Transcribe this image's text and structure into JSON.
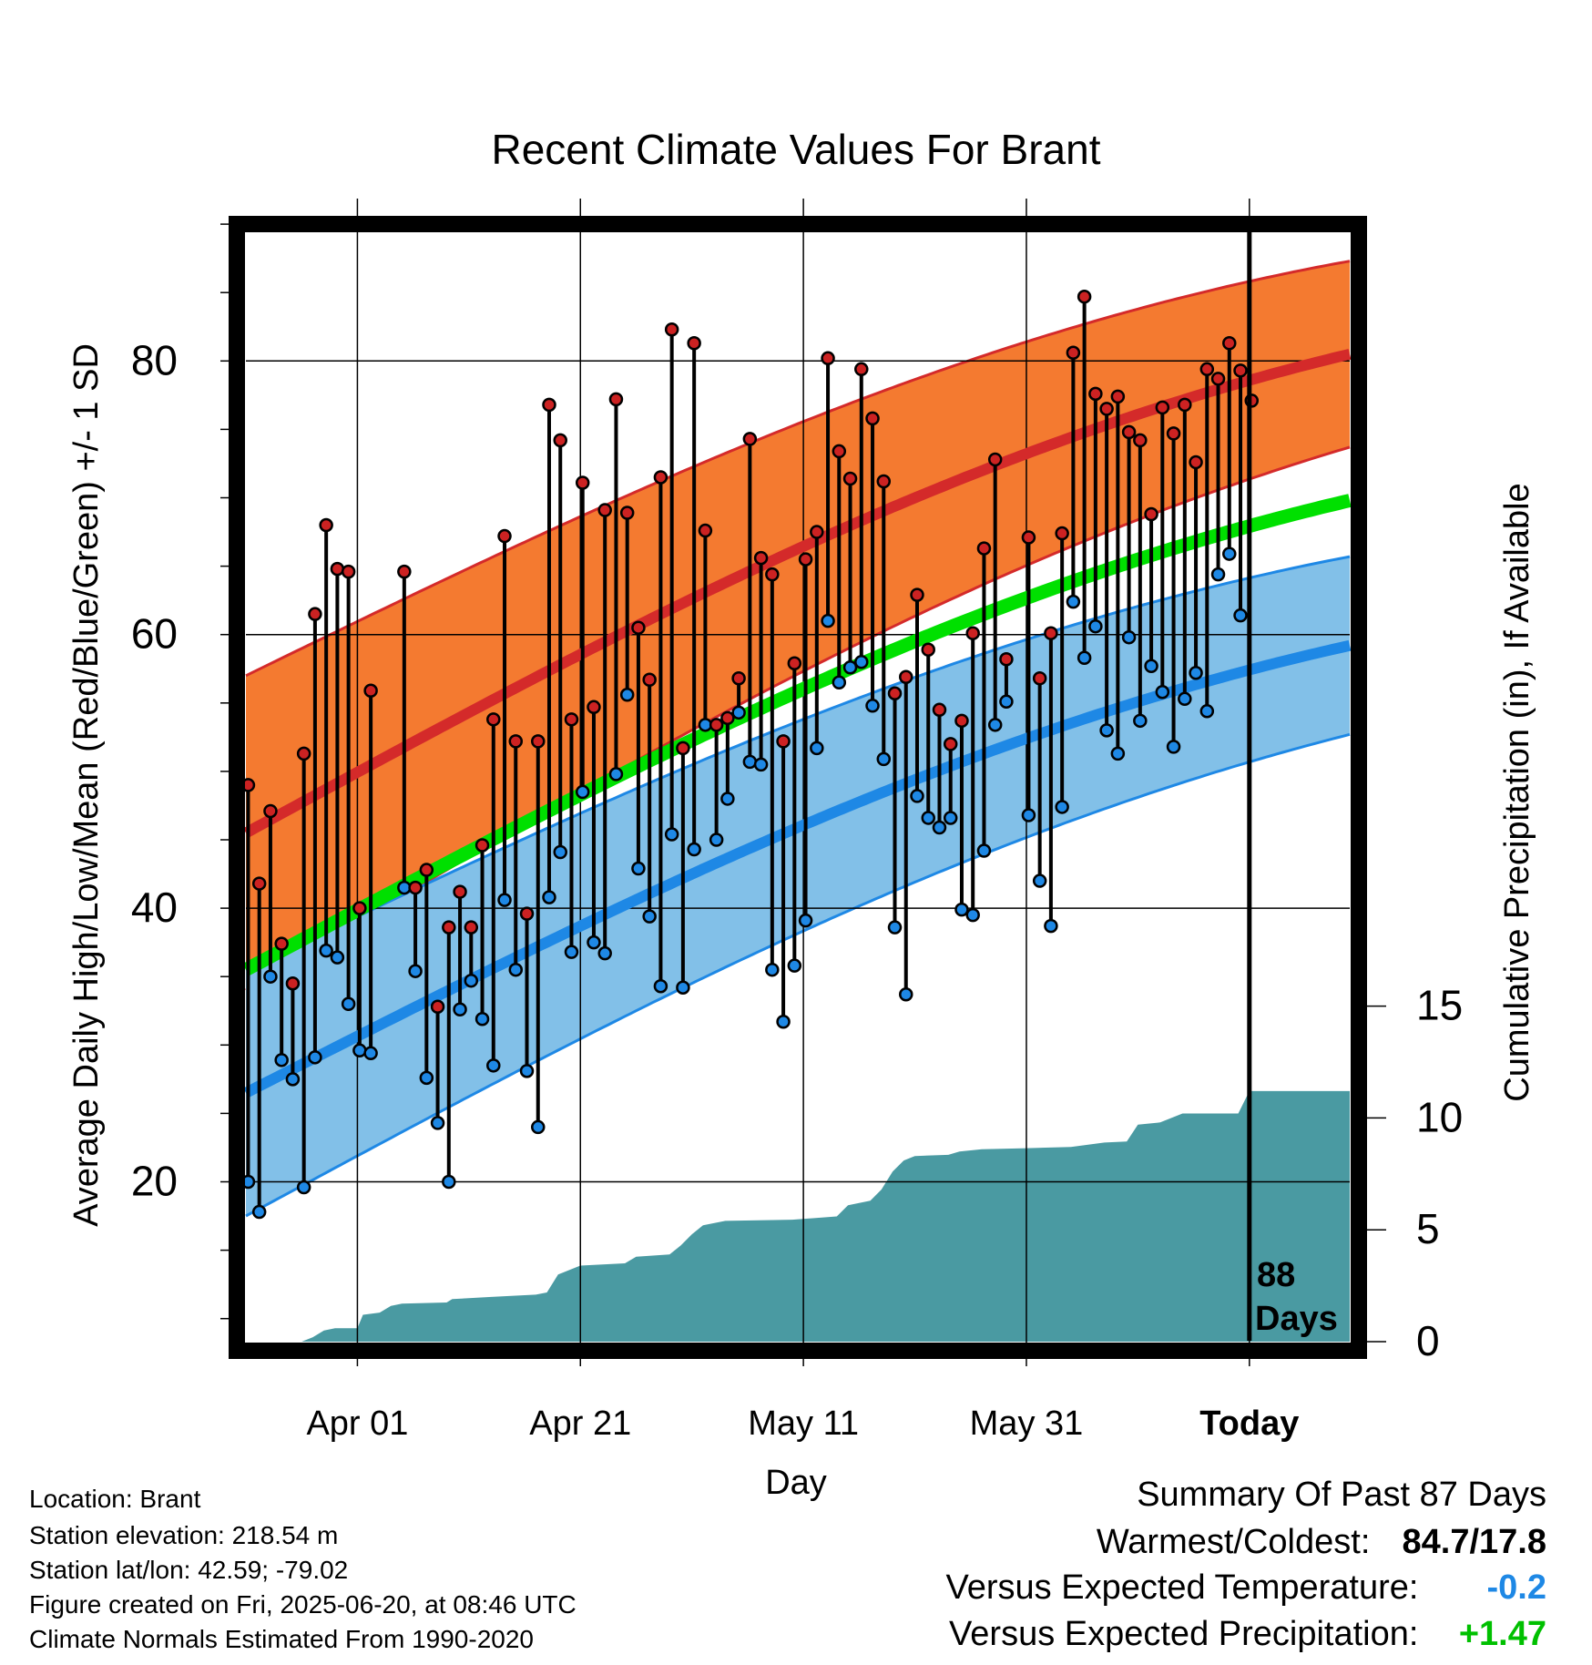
{
  "chart_data": {
    "type": "line",
    "title": "Recent Climate Values For Brant",
    "xlabel": "Day",
    "ylabel_left": "Average Daily High/Low/Mean (Red/Blue/Green) +/- 1 SD",
    "ylabel_right": "Cumulative Precipitation (in), If Available",
    "x_tick_labels": [
      "Apr 01",
      "Apr 21",
      "May 11",
      "May 31",
      "Today"
    ],
    "x_tick_days": [
      0,
      20,
      40,
      60,
      80
    ],
    "x_range": [
      -10,
      89
    ],
    "y_left_ticks": [
      20,
      40,
      60,
      80
    ],
    "y_left_range": [
      8,
      90
    ],
    "y_right_ticks": [
      0,
      5,
      10,
      15
    ],
    "y_right_range": [
      0,
      51
    ],
    "today_marker": {
      "day": 80,
      "label_line1": "88",
      "label_line2": "Days"
    },
    "grid": true,
    "colors": {
      "high_band": "#f47a30",
      "high_line": "#d42a2a",
      "low_band": "#82c0e8",
      "low_line": "#1e88e5",
      "mean_line": "#00e000",
      "precip": "#4a9aa2",
      "high_dot": "#cc2222",
      "low_dot": "#1e88e5"
    },
    "normal_high": {
      "start": 45.5,
      "end": 80.5,
      "sd_start": 11.5,
      "sd_end": 6.8
    },
    "normal_low": {
      "start": 26.5,
      "end": 59.2,
      "sd_start": 9.0,
      "sd_end": 6.5
    },
    "normal_mean": {
      "start": 35.5,
      "end": 69.8
    },
    "daily_high": [
      49,
      41.8,
      47.1,
      37.4,
      34.5,
      51.3,
      61.5,
      68,
      64.8,
      64.6,
      40,
      55.9,
      null,
      null,
      64.6,
      41.5,
      42.8,
      32.8,
      38.6,
      41.2,
      38.6,
      44.6,
      53.8,
      67.2,
      52.2,
      39.6,
      52.2,
      76.8,
      74.2,
      53.8,
      71.1,
      54.7,
      69.1,
      77.2,
      68.9,
      60.5,
      56.7,
      71.5,
      82.3,
      51.7,
      81.3,
      67.6,
      53.4,
      53.9,
      56.8,
      74.3,
      65.6,
      64.4,
      52.2,
      57.9,
      65.5,
      67.5,
      80.2,
      73.4,
      71.4,
      79.4,
      75.8,
      71.2,
      55.7,
      56.9,
      62.9,
      58.9,
      54.5,
      52,
      53.7,
      60.1,
      66.3,
      72.8,
      58.2,
      null,
      67.1,
      56.8,
      60.1,
      67.4,
      80.6,
      84.7,
      77.6,
      76.5,
      77.4,
      74.8,
      74.2,
      68.8,
      76.6,
      74.7,
      76.8,
      72.6,
      79.4,
      78.7,
      81.3,
      79.3,
      77.1
    ],
    "daily_low": [
      20,
      17.8,
      35,
      28.9,
      27.5,
      19.6,
      29.1,
      36.9,
      36.4,
      33,
      29.6,
      29.4,
      null,
      null,
      41.5,
      35.4,
      27.6,
      24.3,
      20,
      32.6,
      34.7,
      31.9,
      28.5,
      40.6,
      35.5,
      28.1,
      24,
      40.8,
      44.1,
      36.8,
      48.5,
      37.5,
      36.7,
      49.8,
      55.6,
      42.9,
      39.4,
      34.3,
      45.4,
      34.2,
      44.3,
      53.4,
      45,
      48,
      54.3,
      50.7,
      50.5,
      35.5,
      31.7,
      35.8,
      39.1,
      51.7,
      61,
      56.5,
      57.6,
      58,
      54.8,
      50.9,
      38.6,
      33.7,
      48.2,
      46.6,
      45.9,
      46.6,
      39.9,
      39.5,
      44.2,
      53.4,
      55.1,
      null,
      46.8,
      42,
      38.7,
      47.4,
      62.4,
      58.3,
      60.6,
      53,
      51.3,
      59.8,
      53.7,
      57.7,
      55.8,
      51.8,
      55.3,
      57.2,
      54.4,
      64.4,
      65.9,
      61.4,
      null
    ],
    "cumulative_precip": [
      [
        -5,
        0
      ],
      [
        -4,
        0.2
      ],
      [
        -3,
        0.5
      ],
      [
        -2,
        0.6
      ],
      [
        0,
        0.6
      ],
      [
        0.5,
        1.2
      ],
      [
        2,
        1.3
      ],
      [
        3,
        1.6
      ],
      [
        4,
        1.7
      ],
      [
        8,
        1.75
      ],
      [
        8.5,
        1.9
      ],
      [
        12,
        2.0
      ],
      [
        16,
        2.1
      ],
      [
        17,
        2.2
      ],
      [
        18,
        3.0
      ],
      [
        19,
        3.2
      ],
      [
        20,
        3.4
      ],
      [
        24,
        3.5
      ],
      [
        25,
        3.8
      ],
      [
        28,
        3.9
      ],
      [
        29,
        4.3
      ],
      [
        30,
        4.8
      ],
      [
        31,
        5.2
      ],
      [
        33,
        5.4
      ],
      [
        39,
        5.45
      ],
      [
        43,
        5.6
      ],
      [
        44,
        6.1
      ],
      [
        46,
        6.3
      ],
      [
        47,
        6.8
      ],
      [
        48,
        7.6
      ],
      [
        49,
        8.1
      ],
      [
        50,
        8.3
      ],
      [
        53,
        8.35
      ],
      [
        54,
        8.5
      ],
      [
        56,
        8.6
      ],
      [
        60,
        8.65
      ],
      [
        64,
        8.7
      ],
      [
        67,
        8.9
      ],
      [
        69,
        8.95
      ],
      [
        70,
        9.7
      ],
      [
        72,
        9.8
      ],
      [
        74,
        10.2
      ],
      [
        77,
        10.2
      ],
      [
        79,
        10.2
      ],
      [
        80,
        11.2
      ],
      [
        86,
        11.2
      ],
      [
        89,
        11.2
      ]
    ]
  },
  "info": {
    "location": "Location: Brant",
    "elevation": "Station elevation: 218.54 m",
    "latlon": "Station lat/lon: 42.59; -79.02",
    "created": "Figure created on Fri, 2025-06-20, at 08:46 UTC",
    "normals": "Climate Normals Estimated From 1990-2020"
  },
  "summary": {
    "heading": "Summary Of Past 87 Days",
    "warm_cold_label": "Warmest/Coldest:",
    "warm_cold_value": "84.7/17.8",
    "temp_label": "Versus Expected Temperature:",
    "temp_value": "-0.2",
    "temp_color": "#1e88e5",
    "precip_label": "Versus Expected Precipitation:",
    "precip_value": "+1.47",
    "precip_color": "#00c000"
  }
}
